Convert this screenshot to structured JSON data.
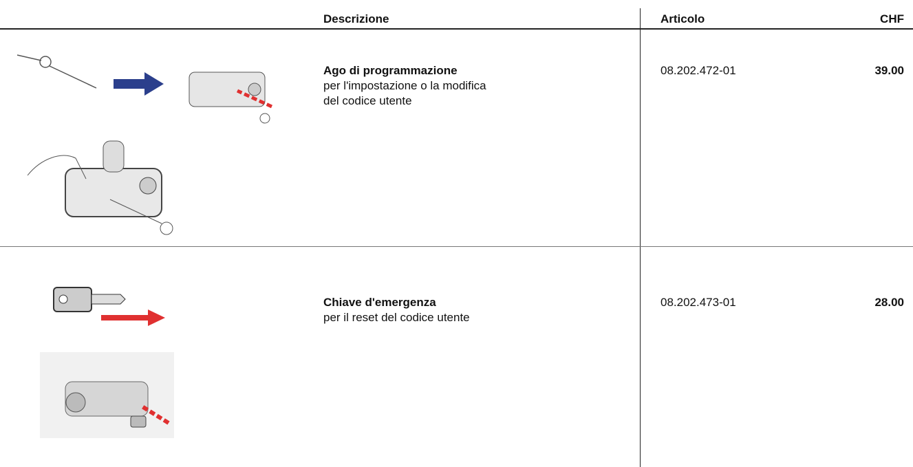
{
  "header": {
    "columns": [
      "Descrizione",
      "Articolo",
      "CHF"
    ]
  },
  "table": {
    "rows": [
      {
        "title": "Ago di programmazione",
        "description": [
          "per l'impostazione o la modifica",
          "del codice utente"
        ],
        "article": "08.202.472-01",
        "price": "39.00"
      },
      {
        "title": "Chiave d'emergenza",
        "description": [
          "per il reset del codice utente"
        ],
        "article": "08.202.473-01",
        "price": "28.00"
      }
    ]
  }
}
